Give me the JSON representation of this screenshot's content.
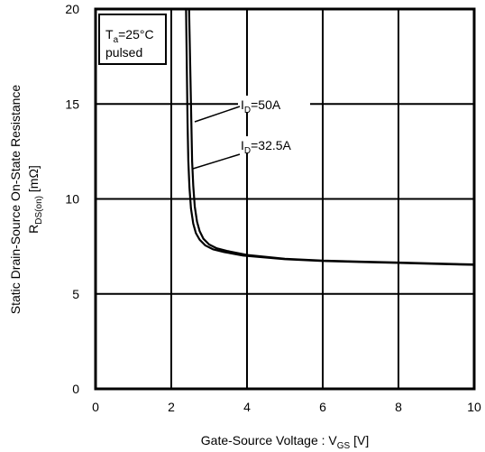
{
  "chart_data": {
    "type": "line",
    "ylabel_line1": "Static Drain-Source On-State Resistance",
    "ylabel_line2": {
      "main": "R",
      "sub": "DS(on)",
      "rest": " [mΩ]"
    },
    "xlabel": {
      "main": "Gate-Source Voltage : V",
      "sub": "GS",
      "rest": " [V]"
    },
    "xlim": [
      0,
      10
    ],
    "ylim": [
      0,
      20
    ],
    "x_ticks": [
      "0",
      "2",
      "4",
      "6",
      "8",
      "10"
    ],
    "y_ticks": [
      "0",
      "5",
      "10",
      "15",
      "20"
    ],
    "grid": true,
    "legend_box": {
      "line1": {
        "main": "T",
        "sub": "a",
        "rest": "=25°C"
      },
      "line2": "pulsed"
    },
    "series": [
      {
        "name": {
          "main": "I",
          "sub": "D",
          "rest": "=50A"
        },
        "x": [
          2.47,
          2.5,
          2.53,
          2.55,
          2.58,
          2.62,
          2.68,
          2.75,
          2.85,
          3.0,
          3.2,
          3.5,
          4.0,
          5.0,
          6.0,
          7.0,
          8.0,
          9.0,
          10.0
        ],
        "y": [
          20.0,
          17.0,
          14.0,
          12.0,
          10.7,
          9.6,
          8.8,
          8.3,
          7.9,
          7.6,
          7.4,
          7.25,
          7.05,
          6.85,
          6.75,
          6.7,
          6.65,
          6.6,
          6.55
        ]
      },
      {
        "name": {
          "main": "I",
          "sub": "D",
          "rest": "=32.5A"
        },
        "x": [
          2.39,
          2.41,
          2.43,
          2.45,
          2.48,
          2.52,
          2.58,
          2.65,
          2.75,
          2.9,
          3.1,
          3.4,
          3.9,
          5.0,
          6.0,
          7.0,
          8.0,
          9.0,
          10.0
        ],
        "y": [
          20.0,
          17.0,
          14.0,
          12.0,
          10.6,
          9.5,
          8.7,
          8.2,
          7.85,
          7.55,
          7.35,
          7.2,
          7.02,
          6.83,
          6.73,
          6.68,
          6.63,
          6.58,
          6.53
        ]
      }
    ]
  }
}
